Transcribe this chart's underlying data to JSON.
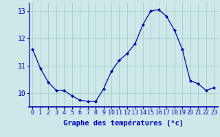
{
  "hours": [
    0,
    1,
    2,
    3,
    4,
    5,
    6,
    7,
    8,
    9,
    10,
    11,
    12,
    13,
    14,
    15,
    16,
    17,
    18,
    19,
    20,
    21,
    22,
    23
  ],
  "temperatures": [
    11.6,
    10.9,
    10.4,
    10.1,
    10.1,
    9.9,
    9.75,
    9.7,
    9.7,
    10.15,
    10.8,
    11.2,
    11.45,
    11.8,
    12.5,
    13.0,
    13.05,
    12.8,
    12.3,
    11.6,
    10.45,
    10.35,
    10.1,
    10.2
  ],
  "ylim": [
    9.5,
    13.3
  ],
  "yticks": [
    10,
    11,
    12,
    13
  ],
  "ytick_labels": [
    "10",
    "11",
    "12",
    "13"
  ],
  "xlabel": "Graphe des températures (°c)",
  "line_color": "#0000aa",
  "marker": "D",
  "marker_size": 2,
  "background_color": "#cce8e8",
  "grid_color": "#aacccc",
  "axis_label_color": "#0000cc",
  "tick_label_color": "#0000cc",
  "xlabel_fontsize": 7.5,
  "ytick_fontsize": 7,
  "xtick_fontsize": 6
}
